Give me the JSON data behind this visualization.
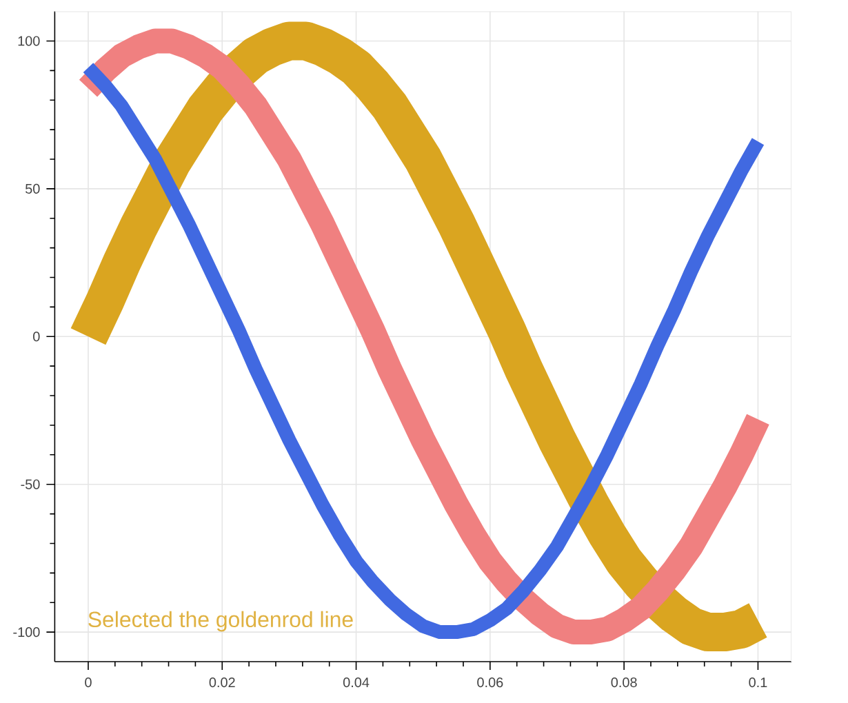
{
  "chart_data": {
    "type": "line",
    "x": [
      0,
      0.0025,
      0.005,
      0.0075,
      0.01,
      0.0125,
      0.015,
      0.0175,
      0.02,
      0.0225,
      0.025,
      0.0275,
      0.03,
      0.0325,
      0.035,
      0.0375,
      0.04,
      0.0425,
      0.045,
      0.0475,
      0.05,
      0.0525,
      0.055,
      0.0575,
      0.06,
      0.0625,
      0.065,
      0.0675,
      0.07,
      0.0725,
      0.075,
      0.0775,
      0.08,
      0.0825,
      0.085,
      0.0875,
      0.09,
      0.0925,
      0.095,
      0.0975,
      0.1
    ],
    "series": [
      {
        "color": "#daa520",
        "values": [
          0,
          12,
          25,
          37,
          48,
          59,
          68,
          77,
          84,
          90,
          95,
          98,
          100,
          100,
          98,
          95,
          91,
          85,
          78,
          69,
          60,
          49,
          38,
          26,
          14,
          2,
          -11,
          -23,
          -35,
          -46,
          -57,
          -67,
          -76,
          -83,
          -89,
          -94,
          -98,
          -100,
          -100,
          -99,
          -96
        ]
      },
      {
        "color": "#f08080",
        "values": [
          84,
          90,
          95,
          98,
          100,
          100,
          98,
          95,
          91,
          85,
          78,
          69,
          60,
          49,
          38,
          26,
          14,
          2,
          -11,
          -23,
          -35,
          -46,
          -57,
          -67,
          -76,
          -83,
          -89,
          -94,
          -98,
          -100,
          -100,
          -99,
          -96,
          -92,
          -86,
          -79,
          -71,
          -61,
          -51,
          -40,
          -28
        ]
      },
      {
        "color": "#4169e1",
        "values": [
          91,
          85,
          78,
          69,
          60,
          49,
          38,
          26,
          14,
          2,
          -11,
          -23,
          -35,
          -46,
          -57,
          -67,
          -76,
          -83,
          -89,
          -94,
          -98,
          -100,
          -100,
          -99,
          -96,
          -92,
          -86,
          -79,
          -71,
          -61,
          -51,
          -40,
          -28,
          -16,
          -3,
          9,
          22,
          34,
          45,
          56,
          66
        ]
      }
    ],
    "xlim": [
      -0.005,
      0.105
    ],
    "ylim": [
      -110,
      110
    ],
    "xticks": [
      0,
      0.02,
      0.04,
      0.06,
      0.08,
      0.1
    ],
    "yticks": [
      -100,
      -50,
      0,
      50,
      100
    ],
    "grid": true,
    "line_style": "solid",
    "annotations": [
      "Selected the goldenrod line"
    ]
  }
}
